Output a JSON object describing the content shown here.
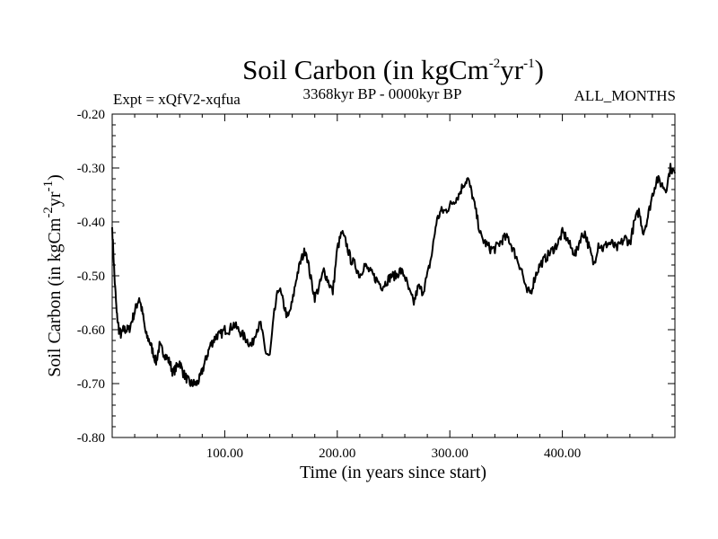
{
  "chart_data": {
    "type": "line",
    "title_main": "Soil Carbon (in kgCm",
    "title_sup1": "-2",
    "title_mid": "yr",
    "title_sup2": "-1",
    "title_end": ")",
    "subtitle_left": "Expt = xQfV2-xqfua",
    "subtitle_center": "3368kyr BP - 0000kyr BP",
    "subtitle_right": "ALL_MONTHS",
    "xlabel": "Time (in years since start)",
    "ylabel_main": "Soil Carbon (in kgCm",
    "ylabel_sup1": "-2",
    "ylabel_mid": "yr",
    "ylabel_sup2": "-1",
    "ylabel_end": ")",
    "xlim": [
      0,
      500
    ],
    "ylim": [
      -0.8,
      -0.2
    ],
    "xticks": [
      100,
      200,
      300,
      400
    ],
    "xtick_labels": [
      "100.00",
      "200.00",
      "300.00",
      "400.00"
    ],
    "yticks": [
      -0.2,
      -0.3,
      -0.4,
      -0.5,
      -0.6,
      -0.7,
      -0.8
    ],
    "ytick_labels": [
      "-0.20",
      "-0.30",
      "-0.40",
      "-0.50",
      "-0.60",
      "-0.70",
      "-0.80"
    ],
    "line_color": "#000000",
    "series": [
      {
        "name": "Soil Carbon",
        "x": [
          0,
          2,
          4,
          6,
          8,
          10,
          12,
          15,
          18,
          21,
          24,
          27,
          30,
          33,
          36,
          39,
          42,
          45,
          48,
          51,
          54,
          57,
          60,
          63,
          66,
          69,
          72,
          75,
          78,
          81,
          84,
          87,
          90,
          93,
          96,
          100,
          104,
          108,
          112,
          116,
          120,
          124,
          128,
          132,
          136,
          140,
          144,
          148,
          152,
          156,
          160,
          164,
          168,
          172,
          176,
          180,
          184,
          188,
          192,
          196,
          200,
          204,
          208,
          212,
          216,
          220,
          224,
          228,
          232,
          236,
          240,
          244,
          248,
          252,
          256,
          260,
          264,
          268,
          272,
          276,
          280,
          284,
          288,
          292,
          296,
          300,
          304,
          308,
          312,
          316,
          320,
          324,
          328,
          332,
          336,
          340,
          344,
          348,
          352,
          356,
          360,
          364,
          368,
          372,
          376,
          380,
          384,
          388,
          392,
          396,
          400,
          404,
          408,
          412,
          416,
          420,
          424,
          428,
          432,
          436,
          440,
          444,
          448,
          452,
          456,
          460,
          464,
          468,
          472,
          476,
          480,
          484,
          488,
          492,
          496,
          500
        ],
        "y": [
          -0.41,
          -0.5,
          -0.57,
          -0.6,
          -0.61,
          -0.6,
          -0.6,
          -0.6,
          -0.58,
          -0.56,
          -0.54,
          -0.57,
          -0.61,
          -0.62,
          -0.64,
          -0.66,
          -0.63,
          -0.64,
          -0.65,
          -0.66,
          -0.68,
          -0.67,
          -0.66,
          -0.68,
          -0.69,
          -0.7,
          -0.7,
          -0.7,
          -0.69,
          -0.67,
          -0.65,
          -0.63,
          -0.62,
          -0.61,
          -0.61,
          -0.6,
          -0.6,
          -0.59,
          -0.6,
          -0.61,
          -0.62,
          -0.63,
          -0.6,
          -0.59,
          -0.64,
          -0.65,
          -0.57,
          -0.52,
          -0.55,
          -0.58,
          -0.55,
          -0.5,
          -0.47,
          -0.45,
          -0.5,
          -0.54,
          -0.52,
          -0.49,
          -0.51,
          -0.53,
          -0.45,
          -0.42,
          -0.44,
          -0.47,
          -0.48,
          -0.5,
          -0.48,
          -0.49,
          -0.5,
          -0.51,
          -0.52,
          -0.51,
          -0.5,
          -0.5,
          -0.49,
          -0.5,
          -0.53,
          -0.55,
          -0.52,
          -0.53,
          -0.5,
          -0.46,
          -0.4,
          -0.38,
          -0.38,
          -0.37,
          -0.36,
          -0.35,
          -0.33,
          -0.32,
          -0.35,
          -0.39,
          -0.43,
          -0.44,
          -0.45,
          -0.45,
          -0.44,
          -0.43,
          -0.43,
          -0.45,
          -0.47,
          -0.49,
          -0.53,
          -0.53,
          -0.5,
          -0.48,
          -0.47,
          -0.46,
          -0.45,
          -0.44,
          -0.42,
          -0.43,
          -0.45,
          -0.46,
          -0.43,
          -0.42,
          -0.45,
          -0.48,
          -0.44,
          -0.45,
          -0.44,
          -0.44,
          -0.45,
          -0.44,
          -0.43,
          -0.44,
          -0.4,
          -0.38,
          -0.42,
          -0.39,
          -0.35,
          -0.32,
          -0.33,
          -0.34,
          -0.3,
          -0.31
        ]
      }
    ]
  }
}
